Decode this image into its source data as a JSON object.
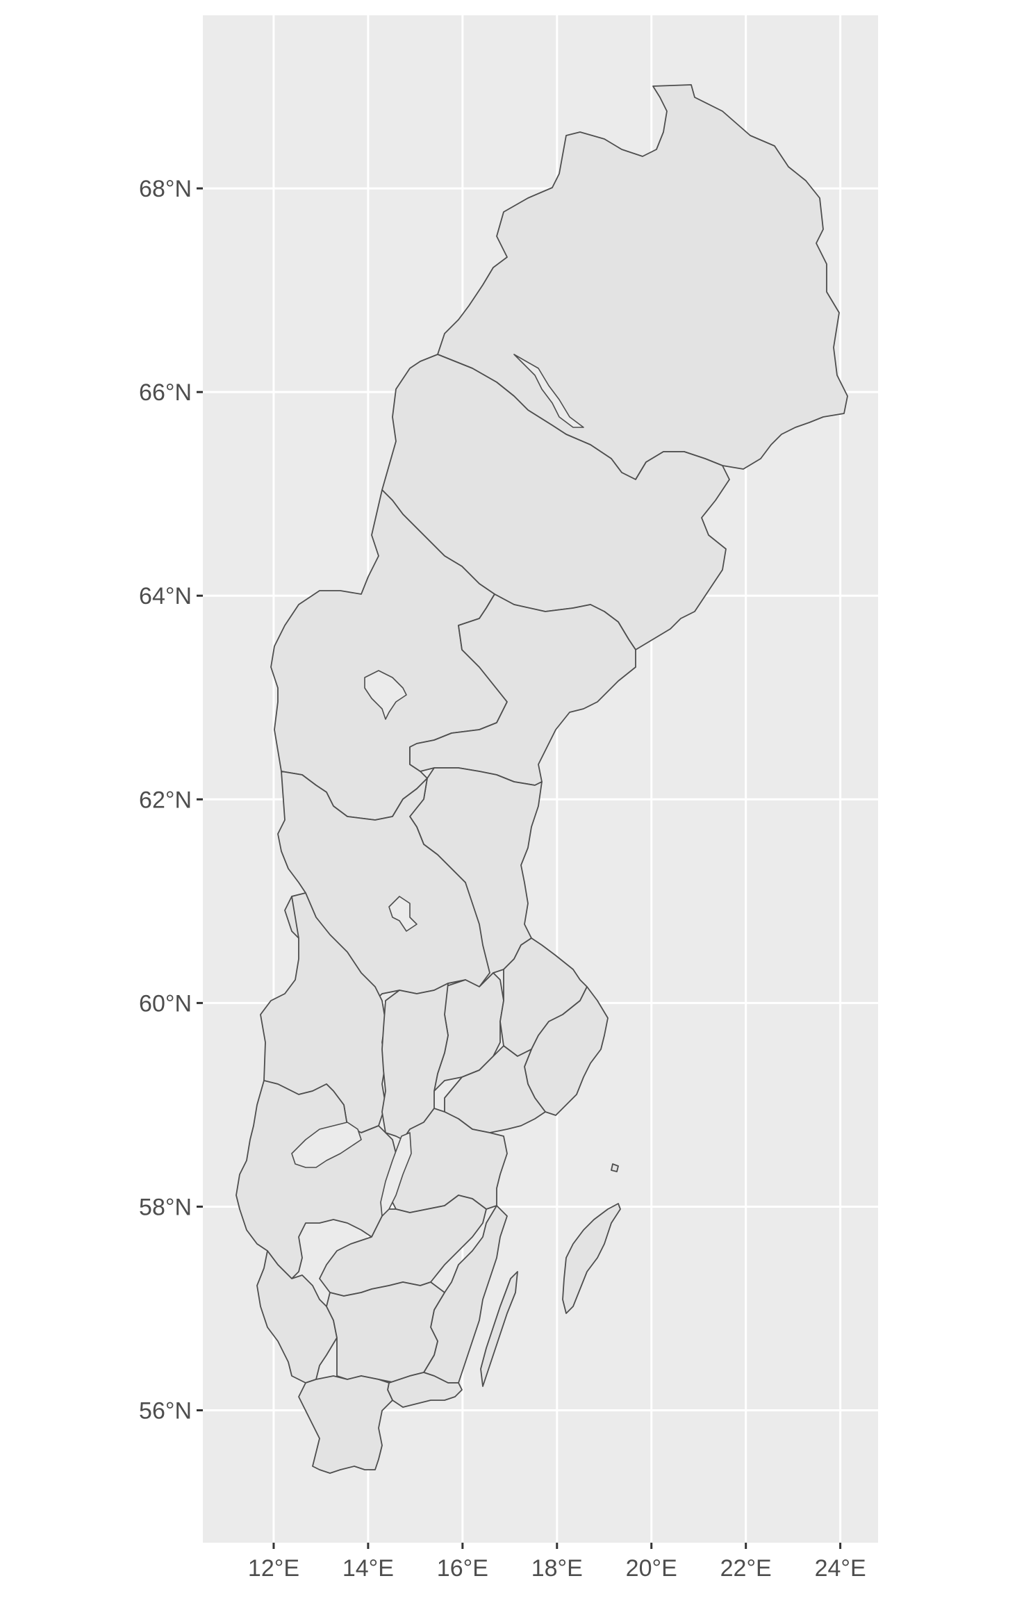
{
  "map": {
    "region": "Sweden",
    "x_axis": {
      "ticks": [
        "12°E",
        "14°E",
        "16°E",
        "18°E",
        "20°E",
        "22°E",
        "24°E"
      ],
      "values": [
        12,
        14,
        16,
        18,
        20,
        22,
        24
      ],
      "range": [
        10.5,
        24.8
      ]
    },
    "y_axis": {
      "ticks": [
        "56°N",
        "58°N",
        "60°N",
        "62°N",
        "64°N",
        "66°N",
        "68°N"
      ],
      "values": [
        56,
        58,
        60,
        62,
        64,
        66,
        68
      ],
      "range": [
        54.7,
        69.7
      ]
    },
    "grid": true,
    "colors": {
      "panel": "#ebebeb",
      "land": "#e3e3e3",
      "border": "#4d4d4d",
      "grid": "#ffffff"
    },
    "counties_shown": 21,
    "islands": [
      "Gotland",
      "Öland"
    ],
    "lakes": [
      "Vänern",
      "Vättern",
      "Siljan",
      "Storsjön",
      "Hornavan"
    ]
  }
}
